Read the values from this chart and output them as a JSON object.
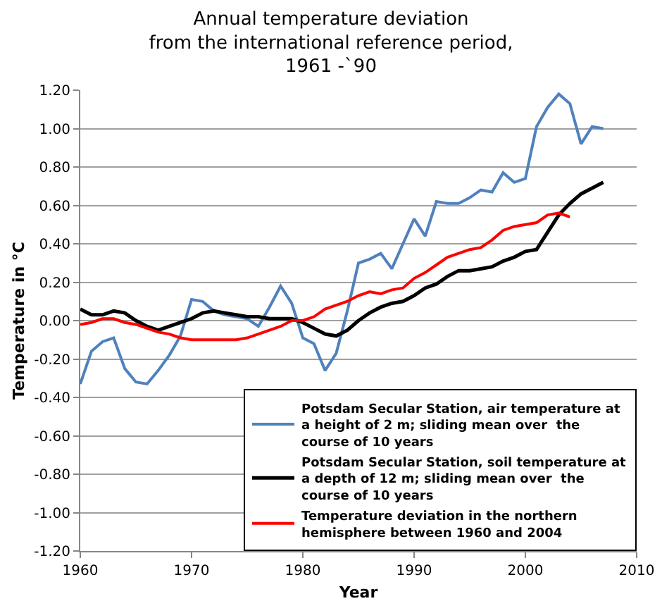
{
  "chart_data": {
    "type": "line",
    "title": "Annual temperature deviation\nfrom the international reference period,\n1961 -`90",
    "xlabel": "Year",
    "ylabel": "Temperature in °C",
    "xlim": [
      1960,
      2010
    ],
    "xticks": [
      1960,
      1970,
      1980,
      1990,
      2000,
      2010
    ],
    "ylim": [
      -1.2,
      1.2
    ],
    "yticks": [
      {
        "value": -1.2,
        "label": "-1.20"
      },
      {
        "value": -1,
        "label": "-1.00"
      },
      {
        "value": -0.8,
        "label": "-0.80"
      },
      {
        "value": -0.6,
        "label": "-0.60"
      },
      {
        "value": -0.4,
        "label": "-0.40"
      },
      {
        "value": -0.2,
        "label": "-0.20"
      },
      {
        "value": 0,
        "label": "0.00"
      },
      {
        "value": 0.2,
        "label": "0.20"
      },
      {
        "value": 0.4,
        "label": "0.40"
      },
      {
        "value": 0.6,
        "label": "0.60"
      },
      {
        "value": 0.8,
        "label": "0.80"
      },
      {
        "value": 1,
        "label": "1.00"
      },
      {
        "value": 1.2,
        "label": "1.20"
      }
    ],
    "grid": "y",
    "legend": "bottom right",
    "line_style": "solid",
    "x": [
      1960,
      1961,
      1962,
      1963,
      1964,
      1965,
      1966,
      1967,
      1968,
      1969,
      1970,
      1971,
      1972,
      1973,
      1974,
      1975,
      1976,
      1977,
      1978,
      1979,
      1980,
      1981,
      1982,
      1983,
      1984,
      1985,
      1986,
      1987,
      1988,
      1989,
      1990,
      1991,
      1992,
      1993,
      1994,
      1995,
      1996,
      1997,
      1998,
      1999,
      2000,
      2001,
      2002,
      2003,
      2004,
      2005,
      2006,
      2007
    ],
    "series": [
      {
        "name": "Potsdam Secular Station, air temperature at a height of 2 m; sliding mean over  the course of 10 years",
        "color": "#4f81bd",
        "values": [
          -0.33,
          -0.16,
          -0.11,
          -0.09,
          -0.25,
          -0.32,
          -0.33,
          -0.26,
          -0.18,
          -0.08,
          0.11,
          0.1,
          0.05,
          0.03,
          0.02,
          0.01,
          -0.03,
          0.07,
          0.18,
          0.09,
          -0.09,
          -0.12,
          -0.26,
          -0.17,
          0.05,
          0.3,
          0.32,
          0.35,
          0.27,
          0.4,
          0.53,
          0.44,
          0.62,
          0.61,
          0.61,
          0.64,
          0.68,
          0.67,
          0.77,
          0.72,
          0.74,
          1.01,
          1.11,
          1.18,
          1.13,
          0.92,
          1.01,
          1.0
        ]
      },
      {
        "name": "Potsdam Secular Station, soil temperature at a depth of 12 m; sliding mean over  the course of 10 years",
        "color": "#000000",
        "values": [
          0.06,
          0.03,
          0.03,
          0.05,
          0.04,
          0.0,
          -0.03,
          -0.05,
          -0.03,
          -0.01,
          0.01,
          0.04,
          0.05,
          0.04,
          0.03,
          0.02,
          0.02,
          0.01,
          0.01,
          0.01,
          -0.01,
          -0.04,
          -0.07,
          -0.08,
          -0.05,
          0.0,
          0.04,
          0.07,
          0.09,
          0.1,
          0.13,
          0.17,
          0.19,
          0.23,
          0.26,
          0.26,
          0.27,
          0.28,
          0.31,
          0.33,
          0.36,
          0.37,
          0.46,
          0.55,
          0.61,
          0.66,
          0.69,
          0.72
        ]
      },
      {
        "name": "Temperature deviation in the northern hemisphere between 1960 and 2004",
        "color": "#ff0000",
        "values": [
          -0.02,
          -0.01,
          0.01,
          0.01,
          -0.01,
          -0.02,
          -0.04,
          -0.06,
          -0.07,
          -0.09,
          -0.1,
          -0.1,
          -0.1,
          -0.1,
          -0.1,
          -0.09,
          -0.07,
          -0.05,
          -0.03,
          0.0,
          0.0,
          0.02,
          0.06,
          0.08,
          0.1,
          0.13,
          0.15,
          0.14,
          0.16,
          0.17,
          0.22,
          0.25,
          0.29,
          0.33,
          0.35,
          0.37,
          0.38,
          0.42,
          0.47,
          0.49,
          0.5,
          0.51,
          0.55,
          0.56,
          0.54,
          null,
          null,
          null
        ]
      }
    ]
  }
}
